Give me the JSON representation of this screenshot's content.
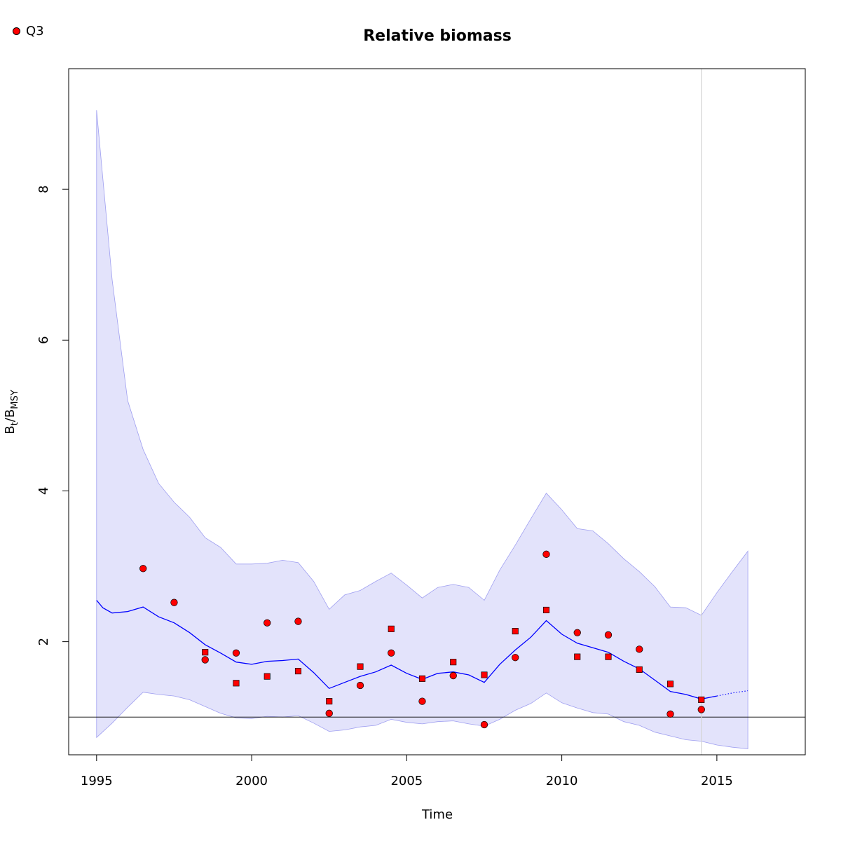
{
  "legend": {
    "label": "Q3",
    "color": "#ff0000"
  },
  "chart_data": {
    "type": "line",
    "title": "Relative biomass",
    "xlabel": "Time",
    "ylabel": {
      "main": "B",
      "sub1": "t",
      "sep": "/B",
      "sub2": "MSY"
    },
    "xlim": [
      1994.1,
      2017.85
    ],
    "ylim": [
      0.5,
      9.6
    ],
    "xticks": [
      1995,
      2000,
      2005,
      2010,
      2015
    ],
    "yticks": [
      2,
      4,
      6,
      8
    ],
    "reference_line_y": 1,
    "vline_x": 2014.5,
    "colors": {
      "fill": "#e3e3fb",
      "fill_edge": "#9f9ff0",
      "line": "#0000ff",
      "points": "#ff0000",
      "vline": "#d3d3d3"
    },
    "band": {
      "x": [
        1995.0,
        1995.5,
        1996.0,
        1996.5,
        1997.0,
        1997.5,
        1998.0,
        1998.5,
        1999.0,
        1999.5,
        2000.0,
        2000.5,
        2001.0,
        2001.5,
        2002.0,
        2002.5,
        2003.0,
        2003.5,
        2004.0,
        2004.5,
        2005.0,
        2005.5,
        2006.0,
        2006.5,
        2007.0,
        2007.5,
        2008.0,
        2008.5,
        2009.0,
        2009.5,
        2010.0,
        2010.5,
        2011.0,
        2011.5,
        2012.0,
        2012.5,
        2013.0,
        2013.5,
        2014.0,
        2014.5,
        2015.0,
        2015.5,
        2016.0
      ],
      "upper": [
        9.05,
        6.8,
        5.2,
        4.55,
        4.1,
        3.85,
        3.65,
        3.38,
        3.25,
        3.03,
        3.03,
        3.04,
        3.08,
        3.05,
        2.8,
        2.43,
        2.62,
        2.68,
        2.8,
        2.91,
        2.75,
        2.58,
        2.72,
        2.76,
        2.72,
        2.55,
        2.95,
        3.28,
        3.63,
        3.97,
        3.75,
        3.5,
        3.47,
        3.3,
        3.1,
        2.93,
        2.73,
        2.46,
        2.45,
        2.35,
        2.65,
        2.93,
        3.2
      ],
      "lower": [
        0.73,
        0.92,
        1.13,
        1.33,
        1.3,
        1.28,
        1.23,
        1.14,
        1.05,
        0.99,
        0.98,
        1.01,
        1.0,
        1.02,
        0.92,
        0.81,
        0.83,
        0.87,
        0.89,
        0.97,
        0.93,
        0.91,
        0.94,
        0.95,
        0.91,
        0.88,
        0.97,
        1.09,
        1.18,
        1.32,
        1.19,
        1.12,
        1.06,
        1.04,
        0.94,
        0.89,
        0.8,
        0.75,
        0.7,
        0.68,
        0.63,
        0.6,
        0.58
      ]
    },
    "series": [
      {
        "x": [
          1995.0,
          1995.2,
          1995.5,
          1996.0,
          1996.5,
          1997.0,
          1997.5,
          1998.0,
          1998.5,
          1999.0,
          1999.5,
          2000.0,
          2000.5,
          2001.0,
          2001.5,
          2002.0,
          2002.5,
          2003.0,
          2003.5,
          2004.0,
          2004.5,
          2005.0,
          2005.5,
          2006.0,
          2006.5,
          2007.0,
          2007.5,
          2008.0,
          2008.5,
          2009.0,
          2009.5,
          2010.0,
          2010.5,
          2011.0,
          2011.5,
          2012.0,
          2012.5,
          2013.0,
          2013.5,
          2014.0,
          2014.5,
          2015.0
        ],
        "values": [
          2.55,
          2.45,
          2.38,
          2.4,
          2.46,
          2.33,
          2.25,
          2.12,
          1.96,
          1.85,
          1.73,
          1.7,
          1.74,
          1.75,
          1.77,
          1.59,
          1.38,
          1.46,
          1.54,
          1.6,
          1.69,
          1.58,
          1.5,
          1.58,
          1.6,
          1.56,
          1.46,
          1.7,
          1.89,
          2.06,
          2.28,
          2.1,
          1.98,
          1.92,
          1.86,
          1.74,
          1.64,
          1.49,
          1.34,
          1.3,
          1.24,
          1.28
        ]
      },
      {
        "style": "dotted",
        "x": [
          2015.0,
          2015.5,
          2016.0
        ],
        "values": [
          1.28,
          1.32,
          1.35
        ]
      }
    ],
    "points_circle": {
      "x": [
        1996.5,
        1997.5,
        1998.5,
        1999.5,
        2000.5,
        2001.5,
        2002.5,
        2003.5,
        2004.5,
        2005.5,
        2006.5,
        2007.5,
        2008.5,
        2009.5,
        2010.5,
        2011.5,
        2012.5,
        2013.5,
        2014.5
      ],
      "y": [
        2.97,
        2.52,
        1.76,
        1.85,
        2.25,
        2.27,
        1.05,
        1.42,
        1.85,
        1.21,
        1.55,
        0.9,
        1.79,
        3.16,
        2.12,
        2.09,
        1.9,
        1.04,
        1.1
      ]
    },
    "points_square": {
      "x": [
        1998.5,
        1999.5,
        2000.5,
        2001.5,
        2002.5,
        2003.5,
        2004.5,
        2005.5,
        2006.5,
        2007.5,
        2008.5,
        2009.5,
        2010.5,
        2011.5,
        2012.5,
        2013.5,
        2014.5
      ],
      "y": [
        1.86,
        1.45,
        1.54,
        1.61,
        1.21,
        1.67,
        2.17,
        1.51,
        1.73,
        1.56,
        2.14,
        2.42,
        1.8,
        1.8,
        1.63,
        1.44,
        1.23
      ]
    }
  }
}
